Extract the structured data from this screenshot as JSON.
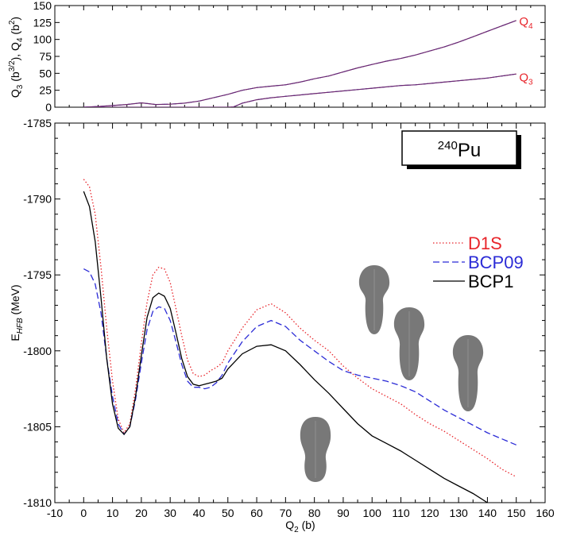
{
  "chart_data": [
    {
      "type": "line",
      "panel": "top",
      "ylabel": "Q3 (b3/2), Q4 (b2)",
      "ylabel_parts": {
        "a": "Q",
        "a_sub": "3",
        "b": " (b",
        "b_sup": "3/2",
        "c": "), Q",
        "c_sub": "4",
        "d": " (b",
        "d_sup": "2",
        "e": ")"
      },
      "xlim": [
        -10,
        160
      ],
      "ylim": [
        0,
        150
      ],
      "yticks": [
        0,
        25,
        50,
        75,
        100,
        125,
        150
      ],
      "annotations": [
        {
          "text": "Q",
          "sub": "4",
          "x": 151,
          "y": 128,
          "color": "#e8242a"
        },
        {
          "text": "Q",
          "sub": "3",
          "x": 151,
          "y": 45,
          "color": "#e8242a"
        }
      ],
      "series": [
        {
          "quantity": "Q4",
          "color": "#6a2a72",
          "x": [
            0,
            5,
            10,
            15,
            20,
            25,
            30,
            35,
            40,
            45,
            50,
            55,
            60,
            65,
            70,
            75,
            80,
            85,
            90,
            95,
            100,
            105,
            110,
            115,
            120,
            125,
            130,
            135,
            140,
            145,
            150
          ],
          "y": [
            0,
            1,
            2.5,
            4,
            6.5,
            4,
            4.5,
            6,
            9,
            14,
            19,
            25,
            29,
            31,
            33,
            37,
            42,
            46,
            52,
            58,
            63,
            68,
            72,
            77,
            83,
            89,
            96,
            104,
            112,
            120,
            128
          ]
        },
        {
          "quantity": "Q3",
          "color": "#6a2a72",
          "x": [
            0,
            50,
            52,
            55,
            60,
            65,
            70,
            75,
            80,
            85,
            90,
            95,
            100,
            105,
            110,
            115,
            120,
            125,
            130,
            135,
            140,
            145,
            150
          ],
          "y": [
            0,
            0,
            0.5,
            6,
            11,
            14,
            16,
            18,
            20,
            22,
            24,
            26,
            28,
            30,
            32,
            33,
            35,
            37,
            39,
            41,
            43,
            46,
            49
          ]
        }
      ]
    },
    {
      "type": "line",
      "panel": "bottom",
      "title": "240Pu",
      "title_parts": {
        "sup": "240",
        "base": "Pu"
      },
      "xlabel": "Q2 (b)",
      "xlabel_parts": {
        "a": "Q",
        "a_sub": "2",
        "b": " (b)"
      },
      "ylabel": "EHFB (MeV)",
      "ylabel_parts": {
        "a": "E",
        "a_sub": "HFB",
        "b": " (MeV)"
      },
      "xlim": [
        -10,
        160
      ],
      "ylim": [
        -1810,
        -1785
      ],
      "xticks": [
        -10,
        0,
        10,
        20,
        30,
        40,
        50,
        60,
        70,
        80,
        90,
        100,
        110,
        120,
        130,
        140,
        150,
        160
      ],
      "yticks": [
        -1810,
        -1805,
        -1800,
        -1795,
        -1790,
        -1785
      ],
      "legend": "right",
      "series": [
        {
          "name": "D1S",
          "color": "#e8242a",
          "dash": "dotted",
          "x": [
            0,
            2,
            4,
            6,
            8,
            10,
            12,
            14,
            16,
            18,
            20,
            22,
            24,
            26,
            28,
            30,
            32,
            34,
            36,
            38,
            40,
            42,
            44,
            46,
            48,
            50,
            55,
            60,
            65,
            70,
            75,
            80,
            85,
            90,
            95,
            100,
            105,
            110,
            115,
            120,
            125,
            130,
            135,
            140,
            145,
            150
          ],
          "y": [
            -1788.7,
            -1789.2,
            -1791.0,
            -1794.5,
            -1798.5,
            -1802.0,
            -1804.5,
            -1805.4,
            -1804.8,
            -1802.5,
            -1799.5,
            -1796.8,
            -1795.0,
            -1794.5,
            -1794.6,
            -1795.5,
            -1797.2,
            -1799.0,
            -1800.6,
            -1801.5,
            -1801.7,
            -1801.6,
            -1801.3,
            -1801.1,
            -1800.8,
            -1800.0,
            -1798.5,
            -1797.3,
            -1796.9,
            -1797.5,
            -1798.5,
            -1799.3,
            -1800.0,
            -1801.0,
            -1801.8,
            -1802.5,
            -1803.0,
            -1803.5,
            -1804.2,
            -1804.8,
            -1805.3,
            -1805.9,
            -1806.5,
            -1807.1,
            -1807.8,
            -1808.3
          ]
        },
        {
          "name": "BCP09",
          "color": "#2b2bd6",
          "dash": "dashed",
          "x": [
            0,
            2,
            4,
            6,
            8,
            10,
            12,
            14,
            16,
            18,
            20,
            22,
            24,
            26,
            28,
            30,
            32,
            34,
            36,
            38,
            40,
            42,
            44,
            46,
            48,
            50,
            55,
            60,
            65,
            70,
            75,
            80,
            85,
            90,
            95,
            100,
            105,
            110,
            115,
            120,
            125,
            130,
            135,
            140,
            145,
            150
          ],
          "y": [
            -1794.6,
            -1794.8,
            -1795.6,
            -1797.5,
            -1800.5,
            -1803.0,
            -1804.8,
            -1805.5,
            -1805.0,
            -1803.2,
            -1800.8,
            -1798.6,
            -1797.4,
            -1797.1,
            -1797.2,
            -1798.0,
            -1799.4,
            -1800.9,
            -1802.0,
            -1802.4,
            -1802.4,
            -1802.5,
            -1802.4,
            -1802.1,
            -1801.6,
            -1800.8,
            -1799.4,
            -1798.4,
            -1798.0,
            -1798.4,
            -1799.3,
            -1800.0,
            -1800.7,
            -1801.3,
            -1801.6,
            -1801.8,
            -1802.0,
            -1802.3,
            -1802.7,
            -1803.3,
            -1803.9,
            -1804.4,
            -1804.9,
            -1805.4,
            -1805.8,
            -1806.2
          ]
        },
        {
          "name": "BCP1",
          "color": "#000000",
          "dash": "solid",
          "x": [
            0,
            2,
            4,
            6,
            8,
            10,
            12,
            14,
            16,
            18,
            20,
            22,
            24,
            26,
            28,
            30,
            32,
            34,
            36,
            38,
            40,
            42,
            44,
            46,
            48,
            50,
            55,
            60,
            65,
            70,
            75,
            80,
            85,
            90,
            95,
            100,
            105,
            110,
            115,
            120,
            125,
            130,
            135,
            140
          ],
          "y": [
            -1789.5,
            -1790.5,
            -1792.8,
            -1796.5,
            -1800.5,
            -1803.5,
            -1805.1,
            -1805.5,
            -1805.0,
            -1803.0,
            -1800.3,
            -1797.8,
            -1796.5,
            -1796.2,
            -1796.4,
            -1797.2,
            -1798.8,
            -1800.5,
            -1801.7,
            -1802.2,
            -1802.3,
            -1802.2,
            -1802.1,
            -1802.0,
            -1801.8,
            -1801.2,
            -1800.2,
            -1799.7,
            -1799.6,
            -1800.0,
            -1800.9,
            -1801.9,
            -1802.8,
            -1803.8,
            -1804.8,
            -1805.6,
            -1806.1,
            -1806.6,
            -1807.2,
            -1807.8,
            -1808.4,
            -1808.9,
            -1809.4,
            -1810.0
          ]
        }
      ]
    }
  ]
}
